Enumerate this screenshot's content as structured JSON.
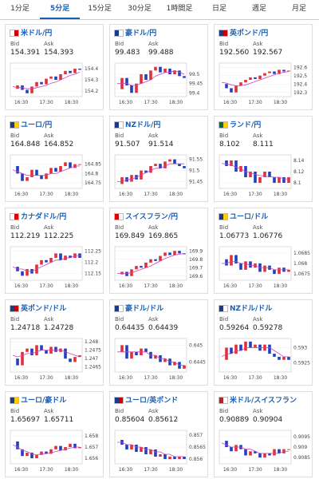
{
  "tabs": [
    "1分足",
    "5分足",
    "15分足",
    "30分足",
    "1時間足",
    "日足",
    "週足",
    "月足"
  ],
  "active_tab": 1,
  "bid_label": "Bid",
  "ask_label": "Ask",
  "time_labels": [
    "16:30",
    "17:30",
    "18:30"
  ],
  "cards": [
    {
      "title": "米ドル/円",
      "bid": "154.391",
      "ask": "154.393",
      "ylim": [
        154.15,
        154.45
      ],
      "yticks": [
        154.2,
        154.3,
        154.4
      ],
      "closes": [
        154.22,
        154.25,
        154.21,
        154.18,
        154.24,
        154.28,
        154.26,
        154.31,
        154.33,
        154.3,
        154.35,
        154.38,
        154.36,
        154.4,
        154.39
      ],
      "ma": [
        154.24,
        154.23,
        154.23,
        154.22,
        154.22,
        154.23,
        154.24,
        154.25,
        154.27,
        154.28,
        154.3,
        154.32,
        154.34,
        154.35,
        154.37
      ]
    },
    {
      "title": "豪ドル/円",
      "bid": "99.483",
      "ask": "99.488",
      "ylim": [
        99.38,
        99.56
      ],
      "yticks": [
        99.4,
        99.45,
        99.5
      ],
      "closes": [
        99.42,
        99.48,
        99.44,
        99.4,
        99.45,
        99.5,
        99.47,
        99.52,
        99.54,
        99.51,
        99.53,
        99.5,
        99.52,
        99.49,
        99.48
      ],
      "ma": [
        99.45,
        99.45,
        99.45,
        99.44,
        99.44,
        99.45,
        99.46,
        99.47,
        99.49,
        99.5,
        99.51,
        99.51,
        99.52,
        99.51,
        99.5
      ]
    },
    {
      "title": "英ポンド/円",
      "bid": "192.560",
      "ask": "192.567",
      "ylim": [
        192.25,
        192.65
      ],
      "yticks": [
        192.3,
        192.4,
        192.5,
        192.6
      ],
      "closes": [
        192.4,
        192.35,
        192.3,
        192.38,
        192.42,
        192.45,
        192.48,
        192.46,
        192.5,
        192.53,
        192.55,
        192.52,
        192.57,
        192.55,
        192.56
      ],
      "ma": [
        192.42,
        192.41,
        192.39,
        192.38,
        192.38,
        192.39,
        192.41,
        192.43,
        192.45,
        192.47,
        192.49,
        192.51,
        192.53,
        192.54,
        192.55
      ]
    },
    {
      "title": "ユーロ/円",
      "bid": "164.848",
      "ask": "164.852",
      "ylim": [
        164.72,
        164.9
      ],
      "yticks": [
        164.75,
        164.8,
        164.85
      ],
      "closes": [
        164.84,
        164.8,
        164.76,
        164.78,
        164.82,
        164.79,
        164.77,
        164.8,
        164.83,
        164.81,
        164.84,
        164.86,
        164.83,
        164.85,
        164.85
      ],
      "ma": [
        164.82,
        164.81,
        164.8,
        164.79,
        164.79,
        164.79,
        164.79,
        164.79,
        164.8,
        164.8,
        164.81,
        164.82,
        164.83,
        164.84,
        164.84
      ]
    },
    {
      "title": "NZドル/円",
      "bid": "91.507",
      "ask": "91.514",
      "ylim": [
        91.42,
        91.57
      ],
      "yticks": [
        91.45,
        91.5,
        91.55
      ],
      "closes": [
        91.44,
        91.47,
        91.45,
        91.48,
        91.46,
        91.5,
        91.49,
        91.52,
        91.53,
        91.51,
        91.54,
        91.55,
        91.53,
        91.52,
        91.51
      ],
      "ma": [
        91.45,
        91.45,
        91.46,
        91.46,
        91.47,
        91.48,
        91.49,
        91.5,
        91.51,
        91.51,
        91.52,
        91.53,
        91.53,
        91.53,
        91.53
      ]
    },
    {
      "title": "ランド/円",
      "bid": "8.102",
      "ask": "8.111",
      "ylim": [
        8.09,
        8.15
      ],
      "yticks": [
        8.1,
        8.12,
        8.14
      ],
      "closes": [
        8.14,
        8.13,
        8.14,
        8.12,
        8.13,
        8.11,
        8.12,
        8.1,
        8.11,
        8.12,
        8.11,
        8.1,
        8.11,
        8.1,
        8.11
      ],
      "ma": [
        8.135,
        8.133,
        8.132,
        8.128,
        8.125,
        8.12,
        8.118,
        8.115,
        8.113,
        8.112,
        8.111,
        8.11,
        8.11,
        8.107,
        8.107
      ]
    },
    {
      "title": "カナダドル/円",
      "bid": "112.219",
      "ask": "112.225",
      "ylim": [
        112.12,
        112.27
      ],
      "yticks": [
        112.15,
        112.2,
        112.25
      ],
      "closes": [
        112.18,
        112.16,
        112.14,
        112.17,
        112.15,
        112.19,
        112.21,
        112.2,
        112.22,
        112.24,
        112.21,
        112.23,
        112.22,
        112.24,
        112.22
      ],
      "ma": [
        112.18,
        112.17,
        112.17,
        112.16,
        112.16,
        112.17,
        112.18,
        112.19,
        112.2,
        112.21,
        112.21,
        112.22,
        112.22,
        112.23,
        112.23
      ]
    },
    {
      "title": "スイスフラン/円",
      "bid": "169.849",
      "ask": "169.865",
      "ylim": [
        169.55,
        169.95
      ],
      "yticks": [
        169.6,
        169.7,
        169.8,
        169.9
      ],
      "closes": [
        169.62,
        169.65,
        169.6,
        169.68,
        169.72,
        169.7,
        169.76,
        169.8,
        169.78,
        169.84,
        169.88,
        169.85,
        169.9,
        169.87,
        169.86
      ],
      "ma": [
        169.63,
        169.63,
        169.63,
        169.64,
        169.66,
        169.68,
        169.7,
        169.72,
        169.75,
        169.78,
        169.81,
        169.83,
        169.85,
        169.86,
        169.87
      ]
    },
    {
      "title": "ユーロ/ドル",
      "bid": "1.06773",
      "ask": "1.06776",
      "ylim": [
        1.0672,
        1.0688
      ],
      "yticks": [
        1.0675,
        1.068,
        1.0685
      ],
      "closes": [
        1.0682,
        1.0679,
        1.0684,
        1.068,
        1.0677,
        1.0681,
        1.0678,
        1.068,
        1.0676,
        1.0679,
        1.0677,
        1.0675,
        1.0678,
        1.0676,
        1.0677
      ],
      "ma": [
        1.068,
        1.068,
        1.0681,
        1.0681,
        1.068,
        1.068,
        1.0679,
        1.0679,
        1.0678,
        1.0678,
        1.0678,
        1.0677,
        1.0677,
        1.0677,
        1.0677
      ]
    },
    {
      "title": "英ポンド/ドル",
      "bid": "1.24718",
      "ask": "1.24728",
      "ylim": [
        1.2462,
        1.2482
      ],
      "yticks": [
        1.2465,
        1.247,
        1.2475,
        1.248
      ],
      "closes": [
        1.247,
        1.2466,
        1.2474,
        1.2476,
        1.2472,
        1.2478,
        1.2475,
        1.2473,
        1.2477,
        1.2474,
        1.2476,
        1.247,
        1.2468,
        1.2471,
        1.2472
      ],
      "ma": [
        1.2472,
        1.2471,
        1.2472,
        1.2473,
        1.2473,
        1.2474,
        1.2475,
        1.2475,
        1.2475,
        1.2475,
        1.2475,
        1.2474,
        1.2473,
        1.2472,
        1.2471
      ]
    },
    {
      "title": "豪ドル/ドル",
      "bid": "0.64435",
      "ask": "0.64439",
      "ylim": [
        0.6442,
        0.6452
      ],
      "yticks": [
        0.6445,
        0.645
      ],
      "closes": [
        0.6448,
        0.645,
        0.6446,
        0.6448,
        0.6447,
        0.6449,
        0.6448,
        0.6446,
        0.6447,
        0.6445,
        0.6446,
        0.6444,
        0.6445,
        0.6443,
        0.6444
      ],
      "ma": [
        0.6448,
        0.6448,
        0.6448,
        0.6448,
        0.6448,
        0.6448,
        0.6448,
        0.6447,
        0.6447,
        0.6446,
        0.6446,
        0.6445,
        0.6445,
        0.6444,
        0.6444
      ]
    },
    {
      "title": "NZドル/ドル",
      "bid": "0.59264",
      "ask": "0.59278",
      "ylim": [
        0.5922,
        0.5933
      ],
      "yticks": [
        0.5925,
        0.593
      ],
      "closes": [
        0.5926,
        0.593,
        0.5928,
        0.5931,
        0.5929,
        0.5932,
        0.593,
        0.5931,
        0.5929,
        0.5931,
        0.5928,
        0.5927,
        0.5926,
        0.5927,
        0.5926
      ],
      "ma": [
        0.5927,
        0.5928,
        0.5928,
        0.5929,
        0.5929,
        0.593,
        0.593,
        0.593,
        0.593,
        0.593,
        0.593,
        0.5929,
        0.5928,
        0.5927,
        0.5927
      ]
    },
    {
      "title": "ユーロ/豪ドル",
      "bid": "1.65697",
      "ask": "1.65711",
      "ylim": [
        1.6555,
        1.6585
      ],
      "yticks": [
        1.656,
        1.657,
        1.658
      ],
      "closes": [
        1.6575,
        1.6568,
        1.6562,
        1.6565,
        1.656,
        1.6563,
        1.6566,
        1.6564,
        1.6568,
        1.6571,
        1.6567,
        1.657,
        1.6573,
        1.6569,
        1.657
      ],
      "ma": [
        1.6572,
        1.657,
        1.6567,
        1.6566,
        1.6564,
        1.6563,
        1.6564,
        1.6564,
        1.6565,
        1.6566,
        1.6567,
        1.6568,
        1.6569,
        1.657,
        1.657
      ]
    },
    {
      "title": "ユーロ/英ポンド",
      "bid": "0.85604",
      "ask": "0.85612",
      "ylim": [
        0.8558,
        0.8572
      ],
      "yticks": [
        0.856,
        0.8565,
        0.857
      ],
      "closes": [
        0.8568,
        0.8566,
        0.8564,
        0.8566,
        0.8563,
        0.8565,
        0.8562,
        0.8564,
        0.8561,
        0.8562,
        0.856,
        0.8561,
        0.856,
        0.8561,
        0.856
      ],
      "ma": [
        0.8567,
        0.8567,
        0.8566,
        0.8566,
        0.8565,
        0.8565,
        0.8564,
        0.8564,
        0.8563,
        0.8563,
        0.8562,
        0.8562,
        0.8561,
        0.8561,
        0.8561
      ]
    },
    {
      "title": "米ドル/スイスフラン",
      "bid": "0.90889",
      "ask": "0.90904",
      "ylim": [
        0.9082,
        0.9098
      ],
      "yticks": [
        0.9085,
        0.909,
        0.9095
      ],
      "closes": [
        0.9093,
        0.909,
        0.9088,
        0.9091,
        0.9089,
        0.9086,
        0.9088,
        0.9087,
        0.9085,
        0.9087,
        0.9086,
        0.9089,
        0.9087,
        0.9089,
        0.9089
      ],
      "ma": [
        0.9092,
        0.9091,
        0.909,
        0.909,
        0.909,
        0.9089,
        0.9089,
        0.9088,
        0.9087,
        0.9087,
        0.9087,
        0.9087,
        0.9087,
        0.9088,
        0.9088
      ]
    }
  ]
}
